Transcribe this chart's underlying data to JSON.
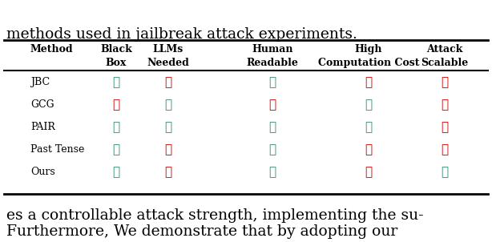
{
  "top_text": "methods used in jailbreak attack experiments.",
  "bottom_text": "es a controllable attack strength, implementing the su-\nFurthermore, We demonstrate that by adopting our",
  "col_headers": [
    [
      "Black",
      "Box"
    ],
    [
      "LLMs",
      "Needed"
    ],
    [
      "Human",
      "Readable"
    ],
    [
      "High",
      "Computation Cost"
    ],
    [
      "Attack",
      "Scalable"
    ]
  ],
  "row_labels": [
    "JBC",
    "GCG",
    "PAIR",
    "Past Tense",
    "Ours"
  ],
  "table_data": [
    [
      true,
      false,
      true,
      false,
      false
    ],
    [
      false,
      true,
      false,
      true,
      false
    ],
    [
      true,
      true,
      true,
      true,
      false
    ],
    [
      true,
      false,
      true,
      false,
      false
    ],
    [
      true,
      false,
      true,
      false,
      true
    ]
  ],
  "check_color": "#2e8b74",
  "cross_color": "#cc0000",
  "bg_color": "#ffffff",
  "text_color": "#000000",
  "header_fontsize": 9,
  "row_label_fontsize": 9,
  "symbol_fontsize": 11
}
